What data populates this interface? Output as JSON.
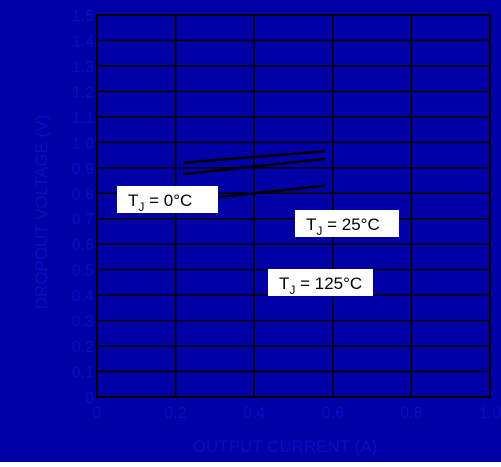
{
  "colors": {
    "background": "#0000A4",
    "grid": "#000000",
    "tick_text": "#0C0CC8",
    "curve": "#000000",
    "label_box_fill": "#FFFFFF",
    "label_text": "#000000"
  },
  "chart_data": {
    "type": "line",
    "xlabel": "OUTPUT CURRENT (A)",
    "ylabel": "DROPOUT VOLTAGE (V)",
    "xlim": [
      0,
      1.0
    ],
    "ylim": [
      0,
      1.5
    ],
    "x_ticks": [
      "0",
      "0.2",
      "0.4",
      "0.6",
      "0.8",
      "1.0"
    ],
    "y_ticks": [
      "0",
      "0.1",
      "0.2",
      "0.3",
      "0.4",
      "0.5",
      "0.6",
      "0.7",
      "0.8",
      "0.9",
      "1.0",
      "1.1",
      "1.2",
      "1.3",
      "1.4",
      "1.5"
    ],
    "grid": true,
    "series": [
      {
        "label_main": "T",
        "label_sub": "J",
        "label_rest": " = 0°C",
        "x": [
          0.22,
          0.58
        ],
        "y": [
          0.92,
          0.965
        ]
      },
      {
        "label_main": "T",
        "label_sub": "J",
        "label_rest": " = 25°C",
        "x": [
          0.22,
          0.58
        ],
        "y": [
          0.875,
          0.935
        ]
      },
      {
        "label_main": "T",
        "label_sub": "J",
        "label_rest": " = 125°C",
        "x": [
          0.22,
          0.58
        ],
        "y": [
          0.77,
          0.83
        ]
      }
    ]
  }
}
